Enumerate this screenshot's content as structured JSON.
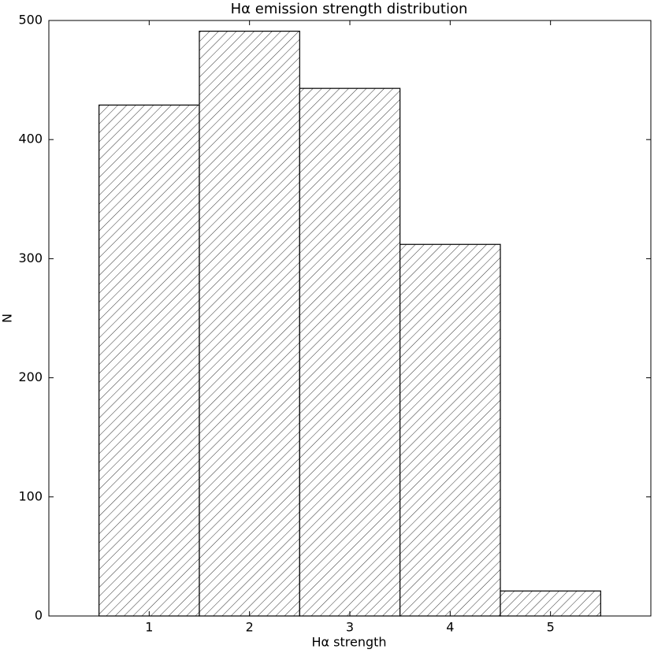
{
  "chart_data": {
    "type": "histogram",
    "title": "Hα emission strength distribution",
    "x_label": "Hα strength",
    "y_label": "N",
    "bins": [
      0.5,
      1.5,
      2.5,
      3.5,
      4.5,
      5.5
    ],
    "values": [
      429,
      491,
      443,
      312,
      21
    ],
    "color": "#ffffff",
    "edgecolor": "#000000",
    "hatch": "////",
    "xlim": [
      0,
      6
    ],
    "xticks": [
      1,
      2,
      3,
      4,
      5
    ],
    "ylim": [
      0,
      500
    ],
    "yticks": [
      0,
      100,
      200,
      300,
      400,
      500
    ]
  }
}
